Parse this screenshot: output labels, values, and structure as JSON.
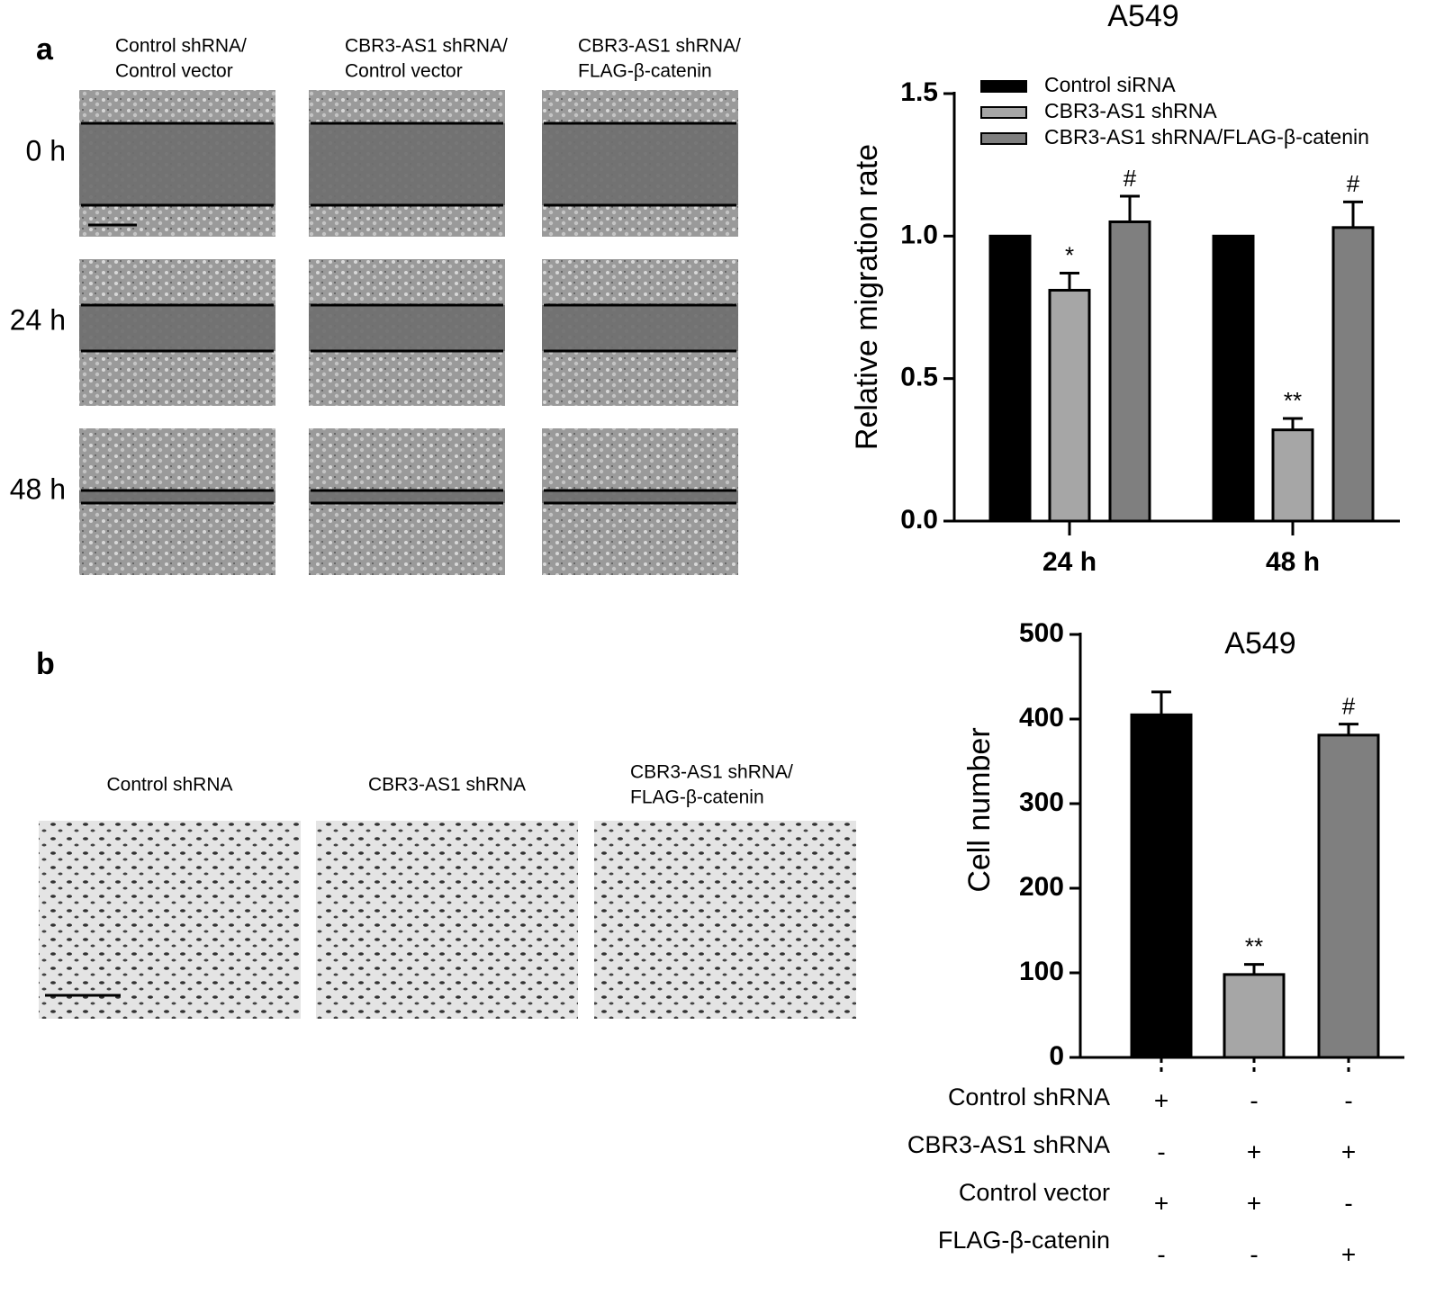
{
  "panel_a": {
    "label": "a",
    "columns": [
      [
        "Control shRNA/",
        "Control vector"
      ],
      [
        "CBR3-AS1 shRNA/",
        "Control vector"
      ],
      [
        "CBR3-AS1 shRNA/",
        "FLAG-β-catenin"
      ]
    ],
    "rows": [
      "0 h",
      "24 h",
      "48 h"
    ]
  },
  "panel_b": {
    "label": "b",
    "columns": [
      [
        "Control shRNA"
      ],
      [
        "CBR3-AS1 shRNA"
      ],
      [
        "CBR3-AS1 shRNA/",
        "FLAG-β-catenin"
      ]
    ]
  },
  "chart_data": [
    {
      "type": "bar",
      "title": "A549",
      "y_label": "Relative migration rate",
      "categories": [
        "24 h",
        "48 h"
      ],
      "series": [
        {
          "name": "Control siRNA",
          "color": "#000000",
          "values": [
            1.0,
            1.0
          ]
        },
        {
          "name": "CBR3-AS1 shRNA",
          "color": "#a6a6a6",
          "values": [
            0.81,
            0.32
          ],
          "errors": [
            0.06,
            0.04
          ],
          "annotations": [
            "*",
            "**"
          ]
        },
        {
          "name": "CBR3-AS1 shRNA/FLAG-β-catenin",
          "color": "#7f7f7f",
          "values": [
            1.05,
            1.03
          ],
          "errors": [
            0.09,
            0.09
          ],
          "annotations": [
            "#",
            "#"
          ]
        }
      ],
      "ylim": [
        0,
        1.5
      ],
      "yticks": [
        {
          "value": 0,
          "label": "0.0"
        },
        0.5,
        {
          "value": 1,
          "label": "1.0"
        },
        1.5
      ],
      "legend": "top"
    },
    {
      "type": "bar",
      "title": "A549",
      "y_label": "Cell number",
      "categories": [
        null,
        null,
        null
      ],
      "values": [
        405,
        98,
        381
      ],
      "errors": [
        27,
        12,
        13
      ],
      "colors": [
        "#000000",
        "#a6a6a6",
        "#7f7f7f"
      ],
      "annotations": [
        null,
        "**",
        "#"
      ],
      "ylim": [
        0,
        500
      ],
      "yticks": [
        0,
        100,
        200,
        300,
        400,
        500
      ],
      "conditions": [
        {
          "label": "Control shRNA",
          "signs": [
            "+",
            "-",
            "-"
          ]
        },
        {
          "label": "CBR3-AS1 shRNA",
          "signs": [
            "-",
            "+",
            "+"
          ]
        },
        {
          "label": "Control vector",
          "signs": [
            "+",
            "+",
            "-"
          ]
        },
        {
          "label": "FLAG-β-catenin",
          "signs": [
            "-",
            "-",
            "+"
          ]
        }
      ]
    }
  ]
}
